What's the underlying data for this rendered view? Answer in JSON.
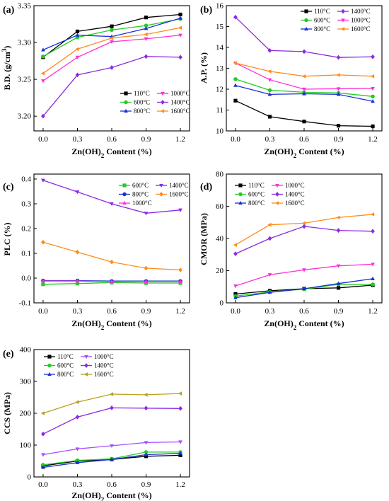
{
  "chart_data": [
    {
      "panel": "(a)",
      "type": "line",
      "xlabel": "Zn(OH)2 Content (%)",
      "ylabel": "B.D. (g/cm3)",
      "x": [
        0.0,
        0.3,
        0.6,
        0.9,
        1.2
      ],
      "xticks": [
        "0.0",
        "0.3",
        "0.6",
        "0.9",
        "1.2"
      ],
      "ylim": [
        3.18,
        3.35
      ],
      "yticks": [
        "3.20",
        "3.25",
        "3.30",
        "3.35"
      ],
      "grid": false,
      "legend_position": "bottom-right",
      "series": [
        {
          "name": "110°C",
          "color": "#000000",
          "marker": "square",
          "values": [
            3.28,
            3.315,
            3.322,
            3.334,
            3.338
          ]
        },
        {
          "name": "600°C",
          "color": "#22cc22",
          "marker": "circle",
          "values": [
            3.281,
            3.307,
            3.317,
            3.323,
            3.332
          ]
        },
        {
          "name": "800°C",
          "color": "#1a2fd6",
          "marker": "triangle-up",
          "values": [
            3.29,
            3.31,
            3.308,
            3.319,
            3.333
          ]
        },
        {
          "name": "1000°C",
          "color": "#ff2fd6",
          "marker": "triangle-down",
          "values": [
            3.248,
            3.28,
            3.301,
            3.305,
            3.31
          ]
        },
        {
          "name": "1400°C",
          "color": "#8a2be2",
          "marker": "diamond",
          "values": [
            3.2,
            3.256,
            3.266,
            3.281,
            3.28
          ]
        },
        {
          "name": "1600°C",
          "color": "#ff8c1a",
          "marker": "triangle-left",
          "values": [
            3.258,
            3.291,
            3.306,
            3.311,
            3.32
          ]
        }
      ]
    },
    {
      "panel": "(b)",
      "type": "line",
      "xlabel": "Zn(OH)2 Content (%)",
      "ylabel": "A.P. (%)",
      "x": [
        0.0,
        0.3,
        0.6,
        0.9,
        1.2
      ],
      "xticks": [
        "0.0",
        "0.3",
        "0.6",
        "0.9",
        "1.2"
      ],
      "ylim": [
        10,
        16
      ],
      "yticks": [
        "10",
        "11",
        "12",
        "13",
        "14",
        "15",
        "16"
      ],
      "grid": false,
      "legend_position": "top-right",
      "series": [
        {
          "name": "110°C",
          "color": "#000000",
          "marker": "square",
          "values": [
            11.45,
            10.68,
            10.45,
            10.25,
            10.22
          ]
        },
        {
          "name": "600°C",
          "color": "#22cc22",
          "marker": "circle",
          "values": [
            12.48,
            11.95,
            11.85,
            11.82,
            11.65
          ]
        },
        {
          "name": "800°C",
          "color": "#1a2fd6",
          "marker": "triangle-up",
          "values": [
            12.18,
            11.75,
            11.78,
            11.75,
            11.42
          ]
        },
        {
          "name": "1400°C",
          "color": "#8a2be2",
          "marker": "diamond",
          "values": [
            15.45,
            13.85,
            13.8,
            13.52,
            13.55
          ]
        },
        {
          "name": "1000°C",
          "color": "#ff2fd6",
          "marker": "triangle-down",
          "values": [
            13.25,
            12.45,
            12.0,
            12.02,
            12.03
          ]
        },
        {
          "name": "1600°C",
          "color": "#ff8c1a",
          "marker": "triangle-left",
          "values": [
            13.25,
            12.85,
            12.62,
            12.68,
            12.62
          ]
        }
      ]
    },
    {
      "panel": "(c)",
      "type": "line",
      "xlabel": "Zn(OH)2 Content (%)",
      "ylabel": "PLC (%)",
      "x": [
        0.0,
        0.3,
        0.6,
        0.9,
        1.2
      ],
      "xticks": [
        "0.0",
        "0.3",
        "0.6",
        "0.9",
        "1.2"
      ],
      "ylim": [
        -0.1,
        0.42
      ],
      "yticks": [
        "-0.1",
        "0.0",
        "0.1",
        "0.2",
        "0.3",
        "0.4"
      ],
      "grid": false,
      "legend_position": "top-right",
      "series": [
        {
          "name": "600°C",
          "color": "#22cc22",
          "marker": "square",
          "values": [
            -0.025,
            -0.022,
            -0.018,
            -0.02,
            -0.02
          ]
        },
        {
          "name": "800°C",
          "color": "#1a2fd6",
          "marker": "circle",
          "values": [
            -0.01,
            -0.01,
            -0.012,
            -0.012,
            -0.012
          ]
        },
        {
          "name": "1000°C",
          "color": "#ff2fd6",
          "marker": "triangle-up",
          "values": [
            -0.012,
            -0.012,
            -0.014,
            -0.014,
            -0.014
          ]
        },
        {
          "name": "1400°C",
          "color": "#8a2be2",
          "marker": "triangle-down",
          "values": [
            0.395,
            0.348,
            0.3,
            0.262,
            0.275
          ]
        },
        {
          "name": "1600°C",
          "color": "#ff8c1a",
          "marker": "diamond",
          "values": [
            0.145,
            0.105,
            0.065,
            0.04,
            0.033
          ]
        }
      ]
    },
    {
      "panel": "(d)",
      "type": "line",
      "xlabel": "Zn(OH)2 Content (%)",
      "ylabel": "CMOR (MPa)",
      "x": [
        0.0,
        0.3,
        0.6,
        0.9,
        1.2
      ],
      "xticks": [
        "0.0",
        "0.3",
        "0.6",
        "0.9",
        "1.2"
      ],
      "ylim": [
        0,
        80
      ],
      "yticks": [
        "0",
        "20",
        "40",
        "60",
        "80"
      ],
      "grid": false,
      "legend_position": "top-left",
      "series": [
        {
          "name": "110°C",
          "color": "#000000",
          "marker": "square",
          "values": [
            5.5,
            7.5,
            8.8,
            9.3,
            11.0
          ]
        },
        {
          "name": "600°C",
          "color": "#22cc22",
          "marker": "circle",
          "values": [
            4.2,
            6.8,
            8.5,
            11.5,
            11.5
          ]
        },
        {
          "name": "800°C",
          "color": "#1a2fd6",
          "marker": "triangle-up",
          "values": [
            3.2,
            6.5,
            8.8,
            12.0,
            15.0
          ]
        },
        {
          "name": "1000°C",
          "color": "#ff2fd6",
          "marker": "triangle-down",
          "values": [
            10.5,
            17.5,
            20.5,
            23.0,
            24.0
          ]
        },
        {
          "name": "1400°C",
          "color": "#8a2be2",
          "marker": "diamond",
          "values": [
            30.5,
            40.0,
            47.5,
            45.0,
            44.5
          ]
        },
        {
          "name": "1600°C",
          "color": "#ff8c1a",
          "marker": "triangle-left",
          "values": [
            36.0,
            48.5,
            49.5,
            53.0,
            55.0
          ]
        }
      ]
    },
    {
      "panel": "(e)",
      "type": "line",
      "xlabel": "Zn(OH)2 Content (%)",
      "ylabel": "CCS (MPa)",
      "x": [
        0.0,
        0.3,
        0.6,
        0.9,
        1.2
      ],
      "xticks": [
        "0.0",
        "0.3",
        "0.6",
        "0.9",
        "1.2"
      ],
      "ylim": [
        0,
        400
      ],
      "yticks": [
        "0",
        "100",
        "200",
        "300",
        "400"
      ],
      "grid": false,
      "legend_position": "top-left",
      "series": [
        {
          "name": "110°C",
          "color": "#000000",
          "marker": "square",
          "values": [
            35,
            50,
            55,
            65,
            68
          ]
        },
        {
          "name": "600°C",
          "color": "#22cc22",
          "marker": "circle",
          "values": [
            38,
            52,
            57,
            78,
            78
          ]
        },
        {
          "name": "800°C",
          "color": "#1a2fd6",
          "marker": "triangle-up",
          "values": [
            30,
            45,
            55,
            70,
            74
          ]
        },
        {
          "name": "1000°C",
          "color": "#a64dff",
          "marker": "triangle-down",
          "values": [
            70,
            88,
            98,
            108,
            110
          ]
        },
        {
          "name": "1400°C",
          "color": "#8a2be2",
          "marker": "diamond",
          "values": [
            135,
            188,
            217,
            216,
            215
          ]
        },
        {
          "name": "1600°C",
          "color": "#b8a020",
          "marker": "triangle-left",
          "values": [
            200,
            235,
            260,
            258,
            262
          ]
        }
      ]
    }
  ]
}
